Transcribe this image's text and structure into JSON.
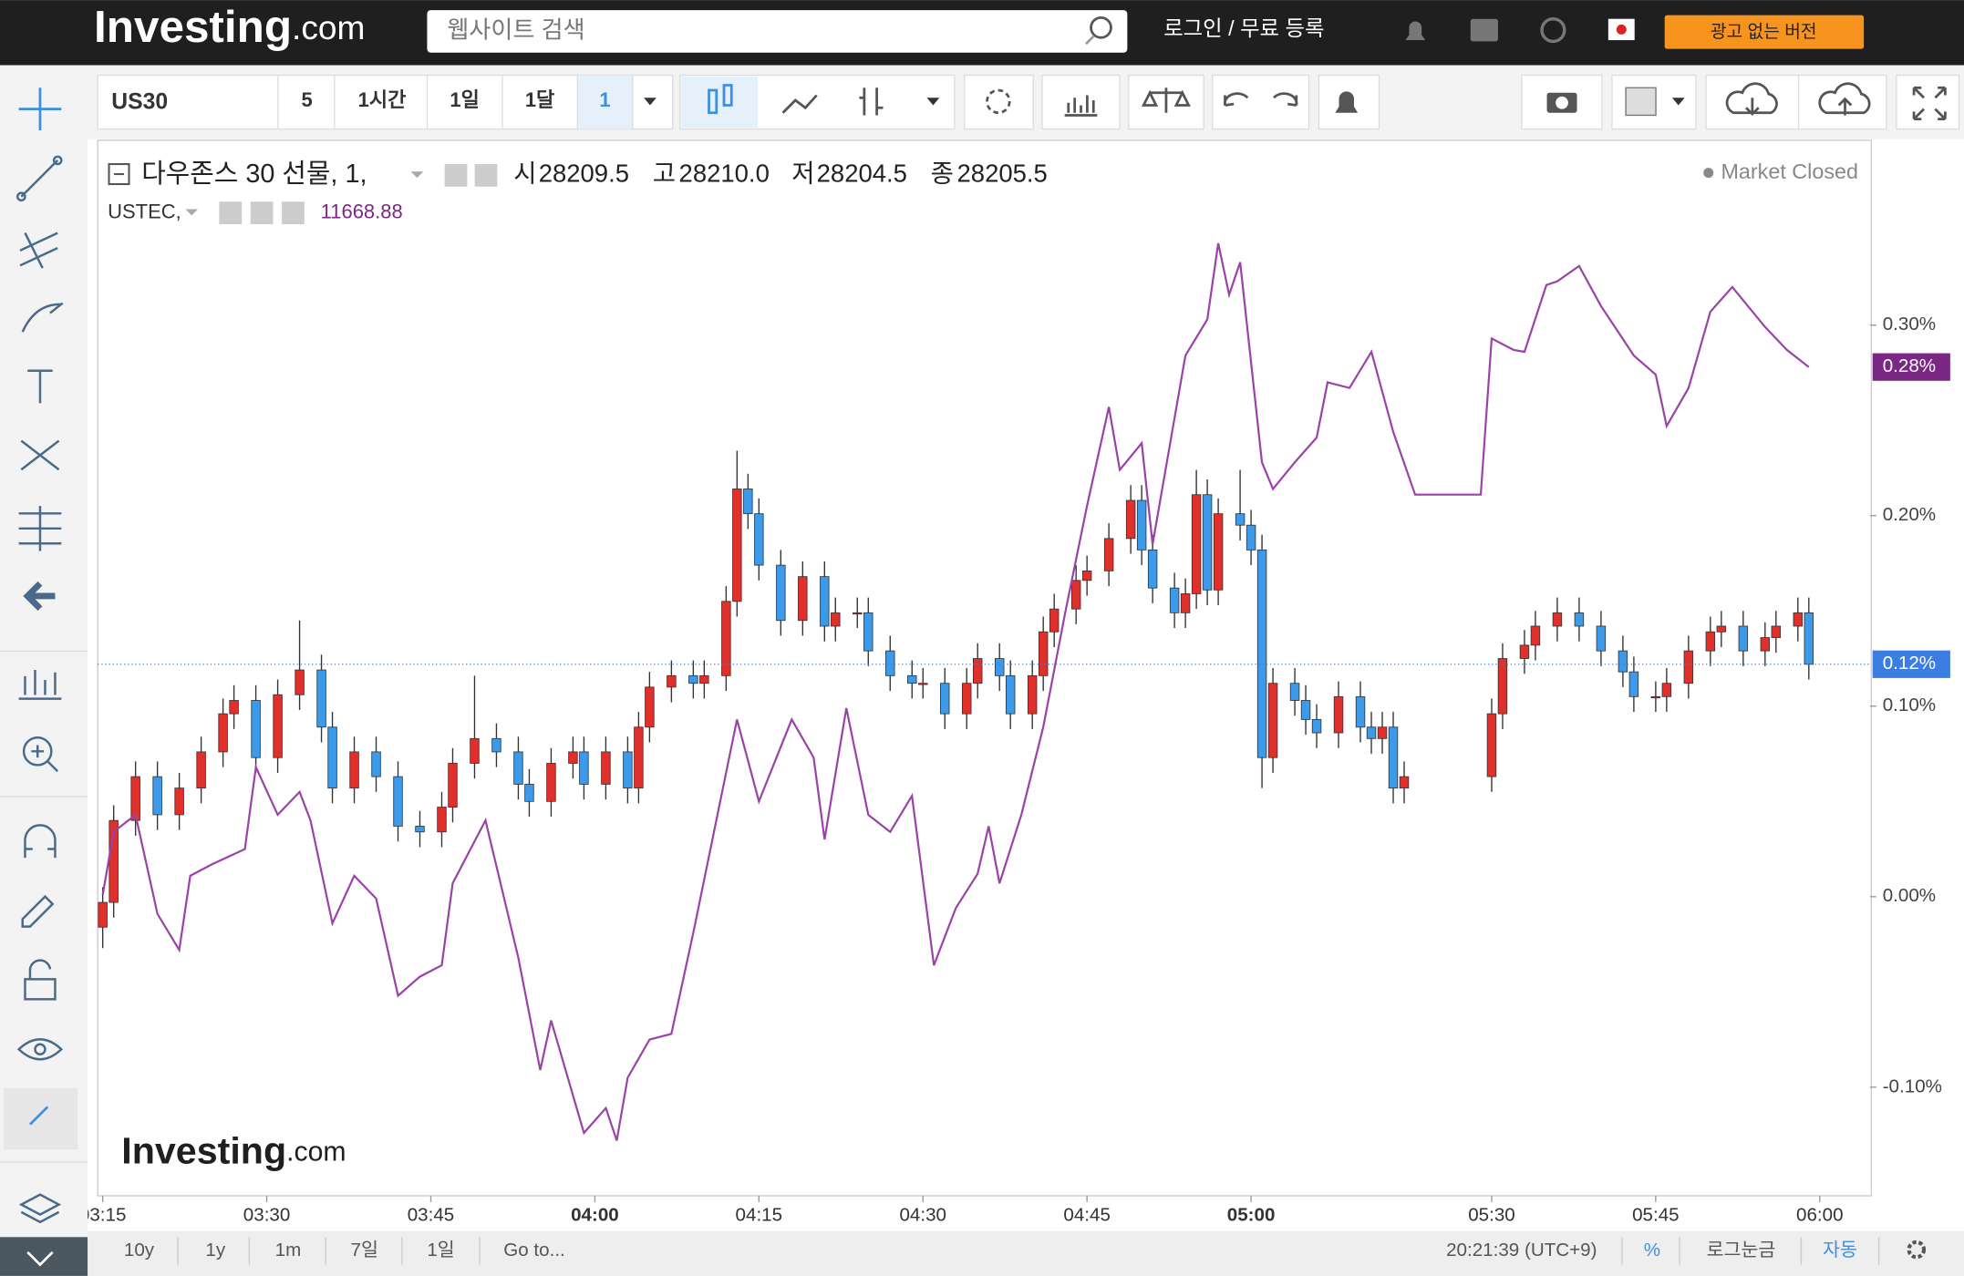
{
  "header": {
    "logo": "Investing",
    "logo_suffix": ".com",
    "search": "웹사이트 검색",
    "login": "로그인 / 무료 등록",
    "ad_free": "광고 없는 버전"
  },
  "toolbar": {
    "symbol": "US30",
    "intervals": [
      "5",
      "1시간",
      "1일",
      "1달",
      "1"
    ]
  },
  "legend": {
    "ohlc_labels": [
      "시",
      "고",
      "저",
      "종"
    ],
    "ohlc_values": [
      "28209.5",
      "28210.0",
      "28204.5",
      "28205.5"
    ],
    "ustec_value": "11668.88",
    "status": "Market Closed"
  },
  "bottom_bar": {
    "ranges": [
      "10y",
      "1y",
      "1m",
      "7일",
      "1일"
    ],
    "goto": "Go to...",
    "clock": "20:21:39 (UTC+9)",
    "percent": "%",
    "log": "로그눈금",
    "auto": "자동"
  },
  "watermark": {
    "logo": "Investing",
    "suffix": ".com"
  },
  "chart_data": {
    "type": "candlestick",
    "grid": false,
    "xlim": [
      -0.46,
      161.6
    ],
    "xticks": [
      {
        "value": 0,
        "label": "03:15"
      },
      {
        "value": 15,
        "label": "03:30"
      },
      {
        "value": 30,
        "label": "03:45"
      },
      {
        "value": 45,
        "label": "04:00",
        "weight": "bold"
      },
      {
        "value": 60,
        "label": "04:15"
      },
      {
        "value": 75,
        "label": "04:30"
      },
      {
        "value": 90,
        "label": "04:45"
      },
      {
        "value": 105,
        "label": "05:00",
        "weight": "bold"
      },
      {
        "value": 127,
        "label": "05:30"
      },
      {
        "value": 142,
        "label": "05:45"
      },
      {
        "value": 157,
        "label": "06:00"
      }
    ],
    "ylim": [
      -0.157,
      0.397
    ],
    "yticks": [
      {
        "value": -0.1,
        "label": "-0.10%"
      },
      {
        "value": 0,
        "label": "0.00%"
      },
      {
        "value": 0.1,
        "label": "0.10%"
      },
      {
        "value": 0.2,
        "label": "0.20%"
      },
      {
        "value": 0.3,
        "label": "0.30%"
      }
    ],
    "last_values": [
      {
        "value": 0.278,
        "label": "0.28%",
        "color": "#7b2785"
      },
      {
        "value": 0.122,
        "label": "0.12%",
        "color": "#3b7de0"
      }
    ],
    "series": [
      {
        "name": "다우존스 30 선물, 1,",
        "up_color": "#e0302c",
        "down_color": "#3d9ae8",
        "x": [
          0,
          1,
          3,
          5,
          7,
          9,
          11,
          12,
          14,
          16,
          18,
          20,
          21,
          23,
          25,
          27,
          29,
          31,
          32,
          34,
          36,
          38,
          39,
          41,
          43,
          44,
          46,
          48,
          49,
          50,
          52,
          54,
          55,
          57,
          58,
          59,
          60,
          62,
          64,
          66,
          67,
          69,
          70,
          72,
          74,
          75,
          77,
          79,
          80,
          82,
          83,
          85,
          86,
          87,
          89,
          90,
          92,
          94,
          95,
          96,
          98,
          99,
          100,
          101,
          102,
          104,
          105,
          106,
          107,
          109,
          110,
          111,
          113,
          115,
          116,
          117,
          118,
          119,
          127,
          128,
          130,
          131,
          133,
          135,
          137,
          139,
          140,
          142,
          143,
          145,
          147,
          148,
          150,
          152,
          153,
          155,
          156
        ],
        "open": [
          -0.016,
          -0.003,
          0.04,
          0.063,
          0.043,
          0.057,
          0.076,
          0.096,
          0.103,
          0.073,
          0.106,
          0.119,
          0.089,
          0.057,
          0.076,
          0.063,
          0.037,
          0.034,
          0.047,
          0.07,
          0.083,
          0.076,
          0.059,
          0.05,
          0.07,
          0.076,
          0.059,
          0.076,
          0.057,
          0.089,
          0.11,
          0.116,
          0.112,
          0.116,
          0.155,
          0.214,
          0.201,
          0.174,
          0.145,
          0.168,
          0.142,
          0.149,
          0.149,
          0.129,
          0.116,
          0.112,
          0.112,
          0.096,
          0.112,
          0.125,
          0.116,
          0.096,
          0.116,
          0.139,
          0.151,
          0.166,
          0.171,
          0.188,
          0.208,
          0.182,
          0.162,
          0.149,
          0.159,
          0.211,
          0.161,
          0.201,
          0.195,
          0.182,
          0.073,
          0.112,
          0.103,
          0.093,
          0.086,
          0.105,
          0.089,
          0.083,
          0.089,
          0.057,
          0.063,
          0.096,
          0.125,
          0.132,
          0.142,
          0.149,
          0.142,
          0.129,
          0.118,
          0.105,
          0.105,
          0.112,
          0.129,
          0.139,
          0.142,
          0.129,
          0.136,
          0.142,
          0.149
        ],
        "high": [
          0.005,
          0.048,
          0.071,
          0.071,
          0.065,
          0.084,
          0.104,
          0.111,
          0.111,
          0.114,
          0.145,
          0.127,
          0.097,
          0.084,
          0.084,
          0.071,
          0.045,
          0.055,
          0.078,
          0.116,
          0.091,
          0.084,
          0.067,
          0.078,
          0.084,
          0.084,
          0.084,
          0.084,
          0.097,
          0.118,
          0.124,
          0.124,
          0.124,
          0.163,
          0.234,
          0.222,
          0.209,
          0.182,
          0.176,
          0.176,
          0.157,
          0.157,
          0.157,
          0.137,
          0.124,
          0.12,
          0.12,
          0.12,
          0.133,
          0.133,
          0.124,
          0.124,
          0.147,
          0.159,
          0.174,
          0.179,
          0.196,
          0.216,
          0.216,
          0.19,
          0.17,
          0.167,
          0.224,
          0.219,
          0.209,
          0.224,
          0.203,
          0.19,
          0.12,
          0.12,
          0.111,
          0.101,
          0.113,
          0.113,
          0.097,
          0.097,
          0.097,
          0.071,
          0.104,
          0.133,
          0.14,
          0.15,
          0.157,
          0.157,
          0.15,
          0.137,
          0.126,
          0.113,
          0.12,
          0.137,
          0.147,
          0.15,
          0.15,
          0.144,
          0.15,
          0.157,
          0.157
        ],
        "low": [
          -0.027,
          -0.011,
          0.032,
          0.035,
          0.035,
          0.049,
          0.068,
          0.088,
          0.065,
          0.065,
          0.098,
          0.081,
          0.049,
          0.049,
          0.055,
          0.029,
          0.026,
          0.026,
          0.039,
          0.062,
          0.068,
          0.051,
          0.042,
          0.042,
          0.062,
          0.051,
          0.051,
          0.049,
          0.049,
          0.081,
          0.102,
          0.104,
          0.104,
          0.108,
          0.147,
          0.193,
          0.166,
          0.137,
          0.137,
          0.134,
          0.134,
          0.141,
          0.121,
          0.108,
          0.104,
          0.104,
          0.088,
          0.088,
          0.104,
          0.108,
          0.088,
          0.088,
          0.108,
          0.131,
          0.143,
          0.158,
          0.163,
          0.18,
          0.174,
          0.154,
          0.141,
          0.141,
          0.151,
          0.153,
          0.153,
          0.187,
          0.174,
          0.057,
          0.065,
          0.095,
          0.085,
          0.078,
          0.078,
          0.081,
          0.075,
          0.075,
          0.049,
          0.049,
          0.055,
          0.088,
          0.117,
          0.124,
          0.134,
          0.134,
          0.121,
          0.11,
          0.097,
          0.097,
          0.097,
          0.104,
          0.121,
          0.131,
          0.121,
          0.121,
          0.128,
          0.134,
          0.114
        ],
        "close": [
          -0.003,
          0.04,
          0.063,
          0.043,
          0.057,
          0.076,
          0.096,
          0.103,
          0.073,
          0.106,
          0.119,
          0.089,
          0.057,
          0.076,
          0.063,
          0.037,
          0.034,
          0.047,
          0.07,
          0.083,
          0.076,
          0.059,
          0.05,
          0.07,
          0.076,
          0.059,
          0.076,
          0.057,
          0.089,
          0.11,
          0.116,
          0.112,
          0.116,
          0.155,
          0.214,
          0.201,
          0.174,
          0.145,
          0.168,
          0.142,
          0.149,
          0.149,
          0.129,
          0.116,
          0.112,
          0.112,
          0.096,
          0.112,
          0.125,
          0.116,
          0.096,
          0.116,
          0.139,
          0.151,
          0.166,
          0.171,
          0.188,
          0.208,
          0.182,
          0.162,
          0.149,
          0.159,
          0.211,
          0.161,
          0.201,
          0.195,
          0.182,
          0.073,
          0.112,
          0.103,
          0.093,
          0.086,
          0.105,
          0.089,
          0.083,
          0.089,
          0.057,
          0.063,
          0.096,
          0.125,
          0.132,
          0.142,
          0.149,
          0.142,
          0.129,
          0.118,
          0.105,
          0.105,
          0.112,
          0.129,
          0.139,
          0.142,
          0.129,
          0.136,
          0.142,
          0.149,
          0.122
        ]
      },
      {
        "name": "USTEC,",
        "type": "line",
        "color": "#9b42a8",
        "x": [
          0,
          1,
          3,
          5,
          7,
          8,
          10,
          13,
          14,
          16,
          18,
          19,
          21,
          23,
          25,
          27,
          29,
          31,
          32,
          35,
          38,
          40,
          41,
          44,
          46,
          47,
          48,
          50,
          52,
          54,
          58,
          60,
          63,
          65,
          66,
          68,
          70,
          72,
          74,
          76,
          78,
          80,
          81,
          82,
          84,
          86,
          88,
          90,
          92,
          93,
          95,
          96,
          99,
          101,
          102,
          103,
          104,
          106,
          107,
          109,
          111,
          112,
          114,
          116,
          118,
          120,
          126,
          127,
          129,
          130,
          132,
          133,
          135,
          137,
          140,
          142,
          143,
          145,
          147,
          149,
          152,
          154,
          156
        ],
        "values": [
          0.001,
          0.034,
          0.043,
          -0.009,
          -0.028,
          0.011,
          0.017,
          0.025,
          0.068,
          0.043,
          0.055,
          0.04,
          -0.014,
          0.011,
          -0.001,
          -0.052,
          -0.042,
          -0.036,
          0.007,
          0.04,
          -0.032,
          -0.091,
          -0.065,
          -0.124,
          -0.111,
          -0.128,
          -0.095,
          -0.075,
          -0.072,
          -0.019,
          0.093,
          0.05,
          0.093,
          0.073,
          0.03,
          0.099,
          0.043,
          0.034,
          0.053,
          -0.036,
          -0.006,
          0.012,
          0.037,
          0.007,
          0.043,
          0.089,
          0.149,
          0.205,
          0.257,
          0.224,
          0.238,
          0.185,
          0.284,
          0.303,
          0.343,
          0.316,
          0.333,
          0.228,
          0.214,
          0.228,
          0.241,
          0.27,
          0.267,
          0.286,
          0.244,
          0.211,
          0.211,
          0.293,
          0.287,
          0.286,
          0.321,
          0.323,
          0.331,
          0.31,
          0.284,
          0.274,
          0.247,
          0.267,
          0.307,
          0.32,
          0.299,
          0.287,
          0.278
        ]
      }
    ]
  }
}
